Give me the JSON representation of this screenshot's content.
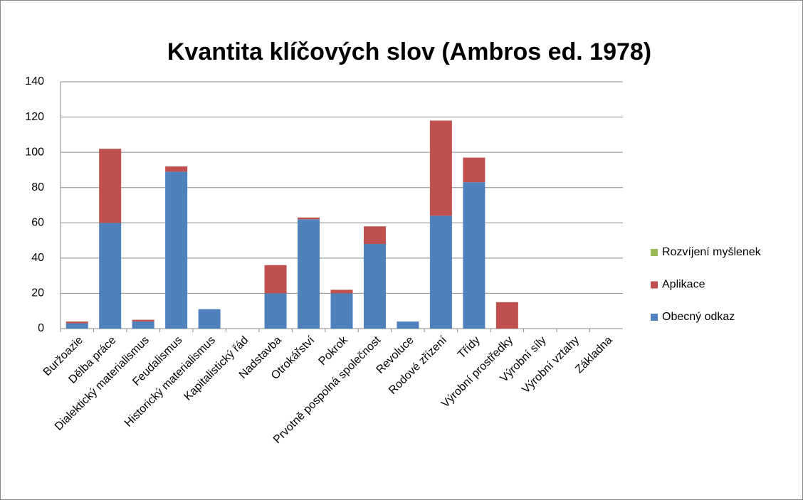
{
  "chart_data": {
    "type": "stacked_bar",
    "title": "Kvantita klíčových slov (Ambros ed. 1978)",
    "categories": [
      "Buržoazie",
      "Dělba práce",
      "Dialektický materialismus",
      "Feudalismus",
      "Historický materialismus",
      "Kapitalistický řád",
      "Nadstavba",
      "Otrokářství",
      "Pokrok",
      "Prvotně pospolná společnost",
      "Revoluce",
      "Rodové zřízení",
      "Třídy",
      "Výrobní prostředky",
      "Výrobní síly",
      "Výrobní vztahy",
      "Základna"
    ],
    "series": [
      {
        "name": "Obecný odkaz",
        "color": "#4f81bd",
        "values": [
          3,
          60,
          4,
          89,
          11,
          0,
          20,
          62,
          20,
          48,
          4,
          64,
          83,
          0,
          0,
          0,
          0
        ]
      },
      {
        "name": "Aplikace",
        "color": "#c0504d",
        "values": [
          1,
          42,
          1,
          3,
          0,
          0,
          16,
          1,
          2,
          10,
          0,
          54,
          14,
          15,
          0,
          0,
          0
        ]
      },
      {
        "name": "Rozvíjení myšlenek",
        "color": "#9bbb59",
        "values": [
          0,
          0,
          0,
          0,
          0,
          0,
          0,
          0,
          0,
          0,
          0,
          0,
          0,
          0,
          0,
          0,
          0
        ]
      }
    ],
    "ylim": [
      0,
      140
    ],
    "yticks": [
      0,
      20,
      40,
      60,
      80,
      100,
      120,
      140
    ],
    "grid": true
  }
}
